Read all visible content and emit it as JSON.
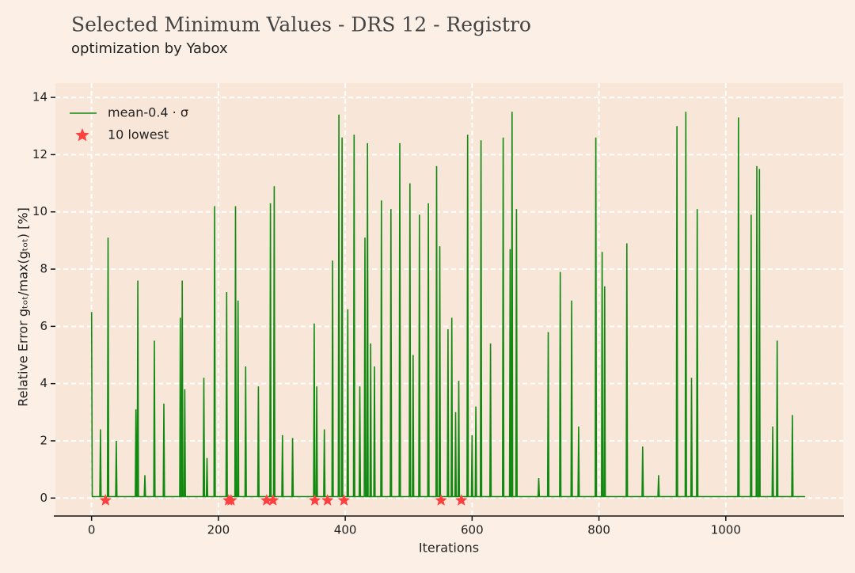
{
  "chart_data": {
    "type": "line",
    "title": "Selected Minimum Values - DRS 12 - Registro",
    "subtitle": "optimization by Yabox",
    "xlabel": "Iterations",
    "ylabel": "Relative Error gₜₒₜ/max(gₜₒₜ) [%]",
    "xlim": [
      -57,
      1185
    ],
    "ylim": [
      -0.6,
      14.5
    ],
    "xticks": [
      0,
      200,
      400,
      600,
      800,
      1000
    ],
    "yticks": [
      0,
      2,
      4,
      6,
      8,
      10,
      12,
      14
    ],
    "grid": true,
    "legend": "upper left",
    "series": [
      {
        "name": "mean-0.4 · σ",
        "color": "#128a12",
        "type": "line",
        "x": [
          0,
          1,
          13,
          14,
          15,
          25,
          26,
          27,
          38,
          39,
          40,
          69,
          70,
          71,
          72,
          73,
          74,
          83,
          84,
          85,
          98,
          99,
          100,
          113,
          114,
          115,
          139,
          140,
          141,
          142,
          143,
          144,
          146,
          147,
          148,
          176,
          177,
          178,
          181,
          182,
          183,
          193,
          194,
          195,
          212,
          213,
          214,
          226,
          227,
          228,
          230,
          231,
          232,
          242,
          243,
          244,
          262,
          263,
          264,
          281,
          282,
          283,
          287,
          288,
          289,
          300,
          301,
          302,
          316,
          317,
          318,
          350,
          351,
          352,
          354,
          355,
          356,
          366,
          367,
          368,
          379,
          380,
          381,
          389,
          390,
          391,
          394,
          395,
          396,
          403,
          404,
          405,
          413,
          414,
          415,
          422,
          423,
          424,
          430,
          431,
          432,
          434,
          435,
          436,
          439,
          440,
          441,
          445,
          446,
          447,
          456,
          457,
          458,
          471,
          472,
          473,
          485,
          486,
          487,
          501,
          502,
          503,
          506,
          507,
          508,
          516,
          517,
          518,
          530,
          531,
          532,
          543,
          544,
          545,
          548,
          549,
          550,
          561,
          562,
          563,
          567,
          568,
          569,
          573,
          574,
          575,
          578,
          579,
          580,
          592,
          593,
          594,
          599,
          600,
          601,
          605,
          606,
          607,
          613,
          614,
          615,
          628,
          629,
          630,
          648,
          649,
          650,
          659,
          660,
          661,
          662,
          663,
          664,
          669,
          670,
          671,
          704,
          705,
          706,
          719,
          720,
          721,
          738,
          739,
          740,
          756,
          757,
          758,
          767,
          768,
          769,
          794,
          795,
          796,
          804,
          805,
          806,
          808,
          809,
          810,
          843,
          844,
          845,
          868,
          869,
          870,
          893,
          894,
          895,
          922,
          923,
          924,
          936,
          937,
          938,
          945,
          946,
          947,
          954,
          955,
          956,
          1019,
          1020,
          1021,
          1039,
          1040,
          1041,
          1048,
          1049,
          1050,
          1052,
          1053,
          1054,
          1073,
          1074,
          1075,
          1080,
          1081,
          1082,
          1104,
          1105,
          1106,
          1125
        ],
        "values": [
          6.5,
          0.05,
          0.05,
          2.4,
          0.05,
          0.05,
          9.1,
          0.05,
          0.05,
          2.0,
          0.05,
          0.05,
          3.1,
          0.05,
          0.05,
          7.6,
          0.05,
          0.05,
          0.8,
          0.05,
          0.05,
          5.5,
          0.05,
          0.05,
          3.3,
          0.05,
          0.05,
          6.3,
          0.05,
          0.05,
          7.6,
          0.05,
          0.05,
          3.8,
          0.05,
          0.05,
          4.2,
          0.05,
          0.05,
          1.4,
          0.05,
          0.05,
          10.2,
          0.05,
          0.05,
          7.2,
          0.05,
          0.05,
          10.2,
          0.05,
          0.05,
          6.9,
          0.05,
          0.05,
          4.6,
          0.05,
          0.05,
          3.9,
          0.05,
          0.05,
          10.3,
          0.05,
          0.05,
          10.9,
          0.05,
          0.05,
          2.2,
          0.05,
          0.05,
          2.1,
          0.05,
          0.05,
          6.1,
          0.05,
          0.05,
          3.9,
          0.05,
          0.05,
          2.4,
          0.05,
          0.05,
          8.3,
          0.05,
          0.05,
          13.4,
          0.05,
          0.05,
          12.6,
          0.05,
          0.05,
          6.6,
          0.05,
          0.05,
          12.7,
          0.05,
          0.05,
          3.9,
          0.05,
          0.05,
          9.1,
          0.05,
          0.05,
          12.4,
          0.05,
          0.05,
          5.4,
          0.05,
          0.05,
          4.6,
          0.05,
          0.05,
          10.4,
          0.05,
          0.05,
          10.1,
          0.05,
          0.05,
          12.4,
          0.05,
          0.05,
          11.0,
          0.05,
          0.05,
          5.0,
          0.05,
          0.05,
          9.9,
          0.05,
          0.05,
          10.3,
          0.05,
          0.05,
          11.6,
          0.05,
          0.05,
          8.8,
          0.05,
          0.05,
          5.9,
          0.05,
          0.05,
          6.3,
          0.05,
          0.05,
          3.0,
          0.05,
          0.05,
          4.1,
          0.05,
          0.05,
          12.7,
          0.05,
          0.05,
          2.2,
          0.05,
          0.05,
          3.2,
          0.05,
          0.05,
          12.5,
          0.05,
          0.05,
          5.4,
          0.05,
          0.05,
          12.6,
          0.05,
          0.05,
          8.7,
          0.05,
          0.05,
          13.5,
          0.05,
          0.05,
          10.1,
          0.05,
          0.05,
          0.7,
          0.05,
          0.05,
          5.8,
          0.05,
          0.05,
          7.9,
          0.05,
          0.05,
          6.9,
          0.05,
          0.05,
          2.5,
          0.05,
          0.05,
          12.6,
          0.05,
          0.05,
          8.6,
          0.05,
          0.05,
          7.4,
          0.05,
          0.05,
          8.9,
          0.05,
          0.05,
          1.8,
          0.05,
          0.05,
          0.8,
          0.05,
          0.05,
          13.0,
          0.05,
          0.05,
          13.5,
          0.05,
          0.05,
          4.2,
          0.05,
          0.05,
          10.1,
          0.05,
          0.05,
          13.3,
          0.05,
          0.05,
          9.9,
          0.05,
          0.05,
          11.6,
          0.05,
          0.05,
          11.5,
          0.05,
          0.05,
          2.5,
          0.05,
          0.05,
          5.5,
          0.05,
          0.05,
          2.9,
          0.05,
          0.05
        ]
      },
      {
        "name": "10 lowest",
        "color": "#ff4040",
        "type": "scatter",
        "x": [
          22,
          216,
          220,
          276,
          286,
          352,
          372,
          398,
          551,
          583
        ],
        "values": [
          0,
          0,
          0,
          0,
          0,
          0,
          0,
          0,
          0,
          0
        ]
      }
    ]
  }
}
